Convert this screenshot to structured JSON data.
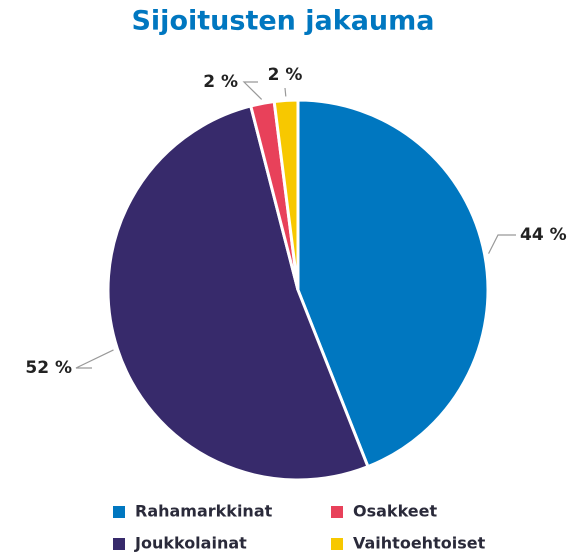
{
  "chart_data": {
    "type": "pie",
    "title": "Sijoitusten jakauma",
    "categories": [
      "Rahamarkkinat",
      "Joukkolainat",
      "Osakkeet",
      "Vaihtoehtoiset"
    ],
    "values": [
      44,
      52,
      2,
      2
    ],
    "value_labels": [
      "44 %",
      "52 %",
      "2 %",
      "2 %"
    ],
    "colors": [
      "#0077c0",
      "#372a6b",
      "#e8415a",
      "#f7c800"
    ]
  }
}
